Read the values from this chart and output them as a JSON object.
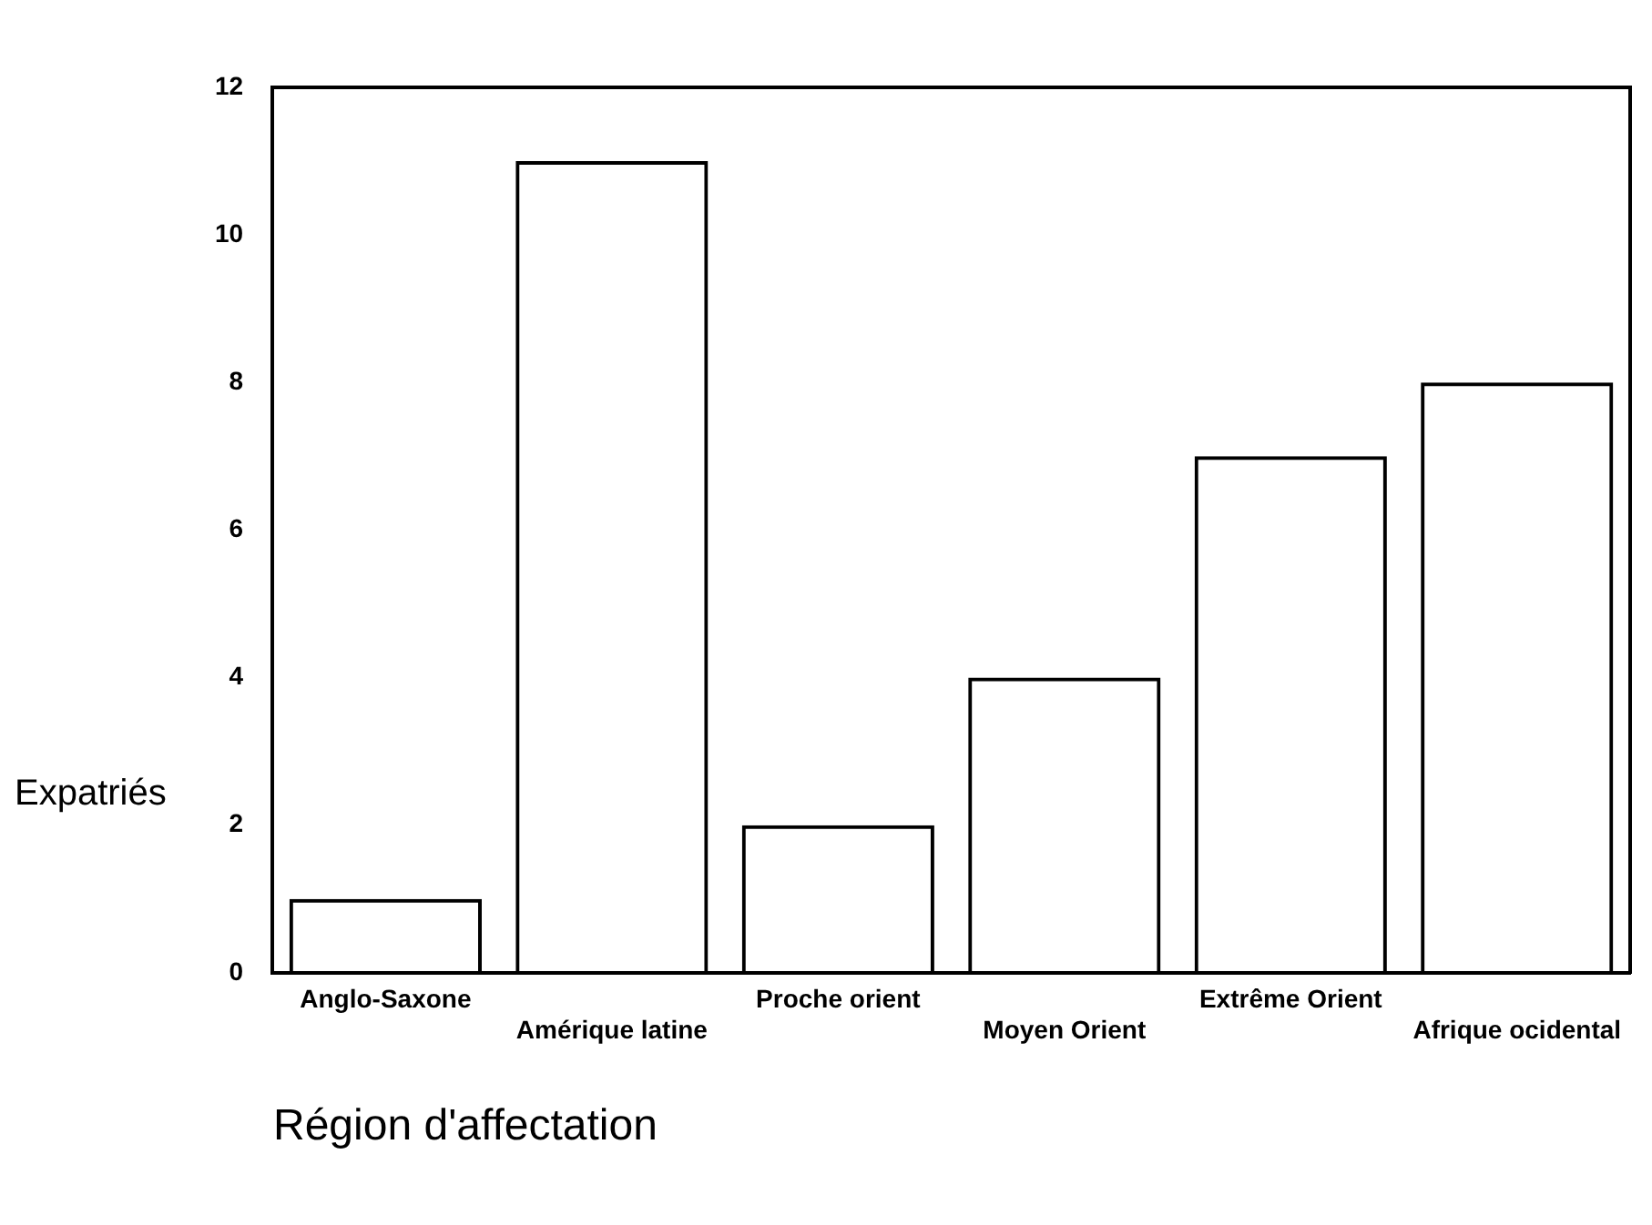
{
  "chart_data": {
    "type": "bar",
    "xlabel": "Région d'affectation",
    "ylabel": "Expatriés",
    "categories": [
      "Anglo-Saxone",
      "Amérique latine",
      "Proche orient",
      "Moyen Orient",
      "Extrême Orient",
      "Afrique ocidental"
    ],
    "values": [
      1,
      11,
      2,
      4,
      7,
      8
    ],
    "color": "#000000",
    "ylim": [
      0,
      12
    ],
    "yticks": [
      0,
      2,
      4,
      6,
      8,
      10,
      12
    ],
    "grid": false,
    "legend": false
  }
}
